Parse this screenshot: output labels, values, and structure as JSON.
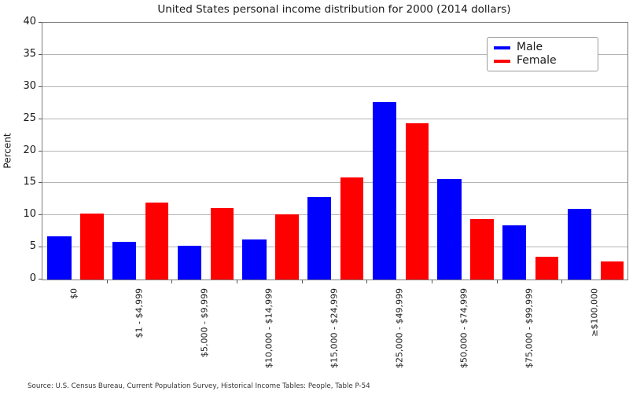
{
  "title": "United States personal income distribution for 2000 (2014 dollars)",
  "source_note": "Source: U.S. Census Bureau, Current Population Survey, Historical Income Tables: People, Table P-54",
  "chart_data": {
    "type": "bar",
    "title": "United States personal income distribution for 2000 (2014 dollars)",
    "xlabel": "",
    "ylabel": "Percent",
    "ylim": [
      0,
      40
    ],
    "yticks": [
      0,
      5,
      10,
      15,
      20,
      25,
      30,
      35,
      40
    ],
    "grid": true,
    "legend_position": "upper right",
    "categories": [
      "$0",
      "$1 - $4,999",
      "$5,000 - $9,999",
      "$10,000 - $14,999",
      "$15,000 - $24,999",
      "$25,000 - $49,999",
      "$50,000 - $74,999",
      "$75,000 - $99,999",
      "≥$100,000"
    ],
    "series": [
      {
        "name": "Male",
        "color": "#0000ff",
        "values": [
          6.7,
          5.9,
          5.3,
          6.2,
          12.9,
          27.6,
          15.7,
          8.4,
          11.0
        ]
      },
      {
        "name": "Female",
        "color": "#ff0000",
        "values": [
          10.3,
          12.0,
          11.1,
          10.1,
          15.9,
          24.3,
          9.4,
          3.5,
          2.8
        ]
      }
    ],
    "colors": {
      "male": "#0000ff",
      "female": "#ff0000",
      "gridline": "#b4b4b4",
      "spine": "#7d7d7d"
    }
  }
}
